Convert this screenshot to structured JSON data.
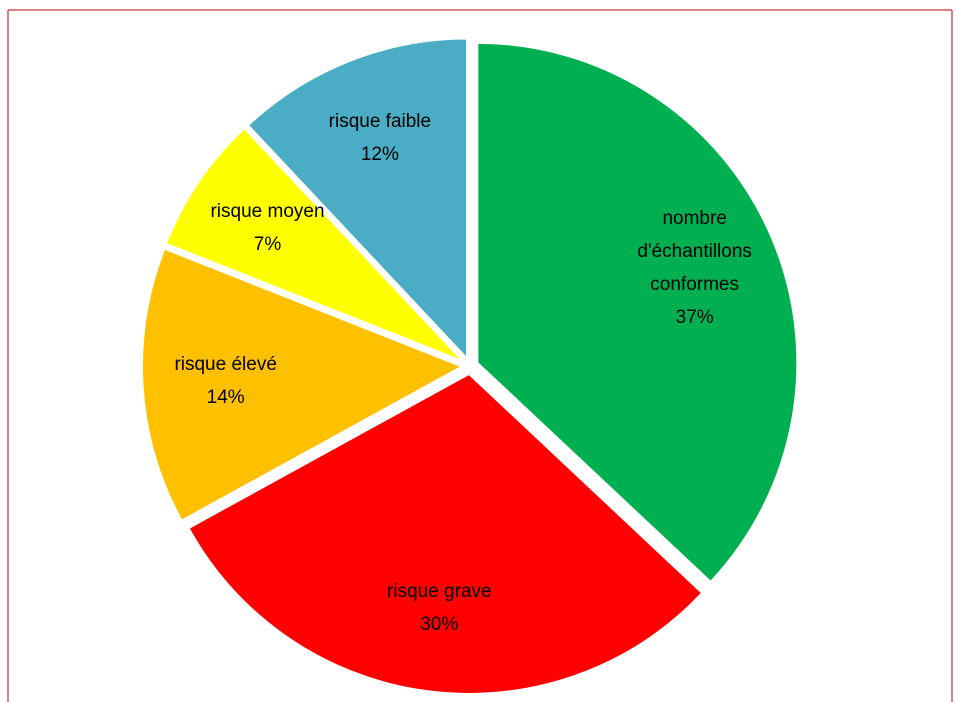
{
  "chart_data": {
    "type": "pie",
    "categories": [
      "nombre d'échantillons conformes",
      "risque grave",
      "risque élevé",
      "risque moyen",
      "risque faible"
    ],
    "values": [
      37,
      30,
      14,
      7,
      12
    ],
    "value_labels": [
      "37%",
      "30%",
      "14%",
      "7%",
      "12%"
    ],
    "colors": [
      "#00b050",
      "#ff0000",
      "#ffc000",
      "#ffff00",
      "#4bacc6"
    ]
  }
}
